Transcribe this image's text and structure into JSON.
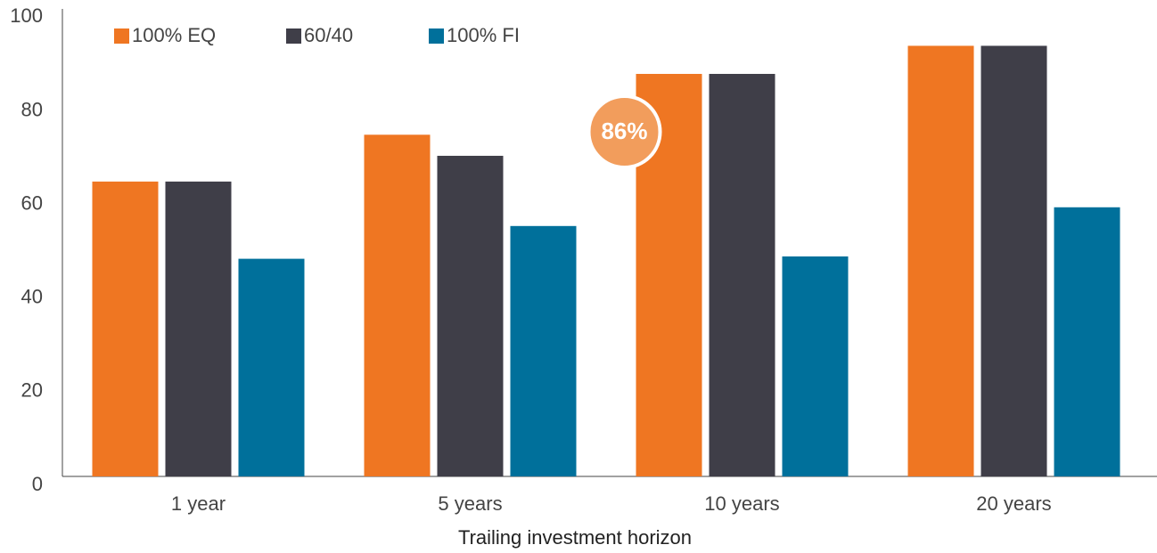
{
  "chart_data": {
    "type": "bar",
    "x_label": "Trailing investment horizon",
    "annotation": "86%",
    "categories": [
      "1 year",
      "5 years",
      "10 years",
      "20 years"
    ],
    "series": [
      {
        "name": "100% EQ",
        "color": "#ef7622",
        "values": [
          63,
          73,
          86,
          92
        ]
      },
      {
        "name": "60/40",
        "color": "#3f3e48",
        "values": [
          63,
          68.5,
          86,
          92
        ]
      },
      {
        "name": "100% FI",
        "color": "#00709b",
        "values": [
          46.5,
          53.5,
          47,
          57.5
        ]
      }
    ],
    "ylim": [
      0,
      100
    ],
    "yticks": [
      0,
      20,
      40,
      60,
      80,
      100
    ],
    "grid": false,
    "legend": "top"
  }
}
